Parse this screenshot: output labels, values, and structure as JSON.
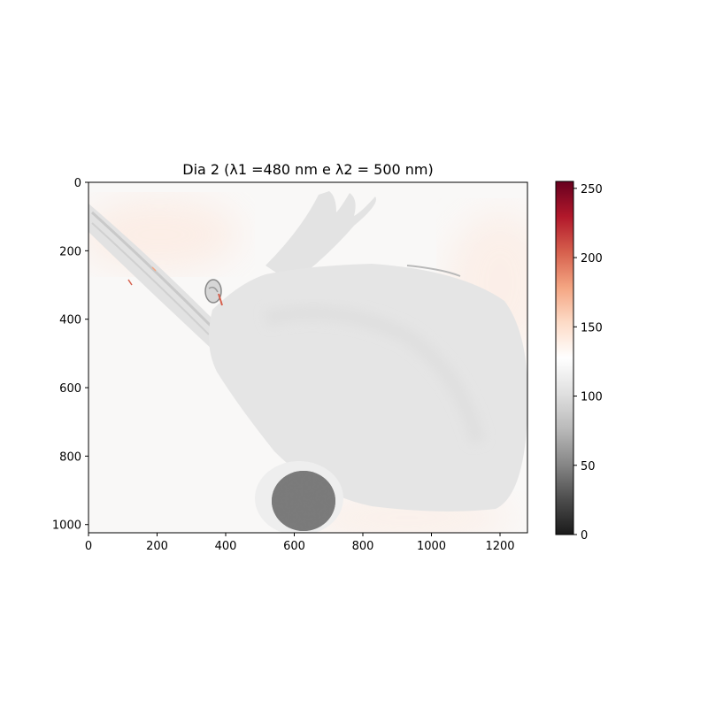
{
  "chart_data": {
    "type": "heatmap",
    "title": "Dia 2 (λ1 =480 nm e λ2 = 500 nm)",
    "image": {
      "x_range": [
        0,
        1280
      ],
      "y_range": [
        0,
        1024
      ],
      "y_inverted": true,
      "x_ticks": [
        "0",
        "200",
        "400",
        "600",
        "800",
        "1000",
        "1200"
      ],
      "x_tick_values": [
        0,
        200,
        400,
        600,
        800,
        1000,
        1200
      ],
      "y_ticks": [
        "0",
        "200",
        "400",
        "600",
        "800",
        "1000"
      ],
      "y_tick_values": [
        0,
        200,
        400,
        600,
        800,
        1000
      ]
    },
    "colorbar": {
      "colormap": "RdGy_r",
      "range": [
        0,
        255
      ],
      "ticks": [
        "0",
        "50",
        "100",
        "150",
        "200",
        "250"
      ],
      "tick_values": [
        0,
        50,
        100,
        150,
        200,
        250
      ],
      "colors": [
        "#1a1a1a",
        "#4d4d4d",
        "#878787",
        "#bababa",
        "#e0e0e0",
        "#ffffff",
        "#fddbc7",
        "#f4a582",
        "#d6604d",
        "#b2182b",
        "#67001f"
      ]
    },
    "grid": false
  }
}
